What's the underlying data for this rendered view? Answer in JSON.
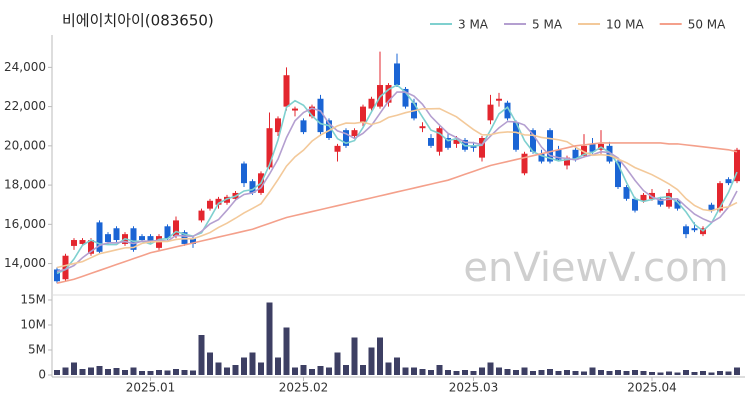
{
  "chart_data": {
    "type": "candlestick",
    "title": "비에이치아이(083650)",
    "watermark": "enViewV.com",
    "up_color": "#e3262e",
    "down_color": "#1a64d4",
    "volume_color": "#3d3f63",
    "categories": [
      null,
      null,
      null,
      null,
      null,
      null,
      null,
      null,
      null,
      null,
      null,
      "2025.01",
      null,
      null,
      null,
      null,
      null,
      null,
      null,
      null,
      null,
      null,
      null,
      null,
      null,
      null,
      null,
      null,
      null,
      "2025.02",
      null,
      null,
      null,
      null,
      null,
      null,
      null,
      null,
      null,
      null,
      null,
      null,
      null,
      null,
      null,
      null,
      null,
      null,
      null,
      "2025.03",
      null,
      null,
      null,
      null,
      null,
      null,
      null,
      null,
      null,
      null,
      null,
      null,
      null,
      null,
      null,
      null,
      null,
      null,
      null,
      null,
      "2025.04",
      null,
      null,
      null,
      null,
      null,
      null,
      null,
      null,
      null,
      null
    ],
    "open": [
      13700,
      13200,
      14900,
      15000,
      14500,
      16100,
      15500,
      15800,
      15000,
      15800,
      15400,
      15400,
      14800,
      15900,
      15400,
      15600,
      15300,
      16200,
      16800,
      17000,
      17100,
      17300,
      19100,
      18200,
      17600,
      18900,
      20700,
      22000,
      21800,
      21300,
      21500,
      22400,
      21300,
      19700,
      20800,
      20500,
      21200,
      21900,
      22000,
      22200,
      24200,
      22900,
      22200,
      20900,
      20400,
      19700,
      20400,
      20100,
      20300,
      20000,
      19400,
      21300,
      22300,
      22200,
      21200,
      18600,
      20800,
      19600,
      20800,
      19800,
      19000,
      19800,
      19500,
      20100,
      19800,
      20000,
      19200,
      17900,
      17300,
      17200,
      17300,
      17300,
      16900,
      17200,
      15900,
      15800,
      15500,
      17000,
      16700,
      18300,
      18200
    ],
    "high": [
      13800,
      14500,
      15300,
      15300,
      15300,
      16200,
      15600,
      15900,
      15600,
      15900,
      15500,
      15500,
      15500,
      16000,
      16400,
      15700,
      15400,
      16800,
      17300,
      17400,
      17500,
      17700,
      19200,
      18300,
      18700,
      21700,
      21500,
      24000,
      22000,
      21400,
      22100,
      22600,
      21400,
      20100,
      20900,
      20900,
      22100,
      22500,
      24800,
      23200,
      24700,
      23000,
      22400,
      21200,
      20600,
      21000,
      20600,
      20500,
      20400,
      20200,
      20500,
      22600,
      22700,
      22300,
      21300,
      19700,
      20900,
      19800,
      20900,
      20000,
      19500,
      20000,
      20600,
      20400,
      20800,
      20200,
      19300,
      18000,
      17400,
      17600,
      17800,
      17400,
      17800,
      17300,
      16000,
      16100,
      15900,
      17100,
      18200,
      18400,
      19900
    ],
    "low": [
      13000,
      13100,
      14700,
      14900,
      14400,
      14500,
      15000,
      15100,
      14900,
      14600,
      15100,
      15000,
      14700,
      15200,
      15300,
      14900,
      14800,
      16100,
      16700,
      16800,
      17000,
      17200,
      17900,
      17500,
      17500,
      18800,
      20500,
      21800,
      21500,
      20600,
      21400,
      20500,
      20300,
      19200,
      19900,
      20400,
      21000,
      21800,
      21900,
      22000,
      23000,
      21900,
      21300,
      20700,
      19900,
      19500,
      19800,
      19900,
      19700,
      19700,
      19200,
      21100,
      22000,
      21300,
      19700,
      18500,
      19600,
      19100,
      19100,
      19200,
      18800,
      19200,
      19400,
      19600,
      19600,
      19100,
      17800,
      17200,
      16600,
      17100,
      17200,
      16900,
      16800,
      16700,
      15300,
      15600,
      15400,
      16600,
      16600,
      18000,
      18100
    ],
    "close": [
      13100,
      14400,
      15200,
      15200,
      15200,
      14600,
      15100,
      15200,
      15500,
      14700,
      15200,
      15100,
      15400,
      15300,
      16200,
      15000,
      15000,
      16700,
      17200,
      17300,
      17400,
      17600,
      18100,
      17600,
      18600,
      20900,
      21400,
      23600,
      21900,
      20700,
      22000,
      20700,
      20400,
      20000,
      20000,
      20800,
      22000,
      22400,
      23100,
      23100,
      23100,
      22000,
      21400,
      21000,
      20000,
      20900,
      19900,
      20300,
      19800,
      19900,
      20400,
      22100,
      22400,
      21400,
      19800,
      19600,
      19700,
      19200,
      19200,
      19300,
      19400,
      19300,
      20000,
      19700,
      20100,
      19200,
      17900,
      17300,
      16700,
      17500,
      17600,
      17000,
      17600,
      16800,
      15500,
      15700,
      15800,
      16700,
      18100,
      18100,
      19800
    ],
    "volume": [
      1000000,
      1500000,
      2500000,
      1200000,
      1500000,
      1800000,
      1200000,
      1400000,
      1000000,
      1500000,
      800000,
      800000,
      1000000,
      900000,
      1200000,
      1000000,
      900000,
      8000000,
      4500000,
      2500000,
      1500000,
      2000000,
      3500000,
      4500000,
      2500000,
      14500000,
      3500000,
      9500000,
      1500000,
      2000000,
      1200000,
      1800000,
      1500000,
      4500000,
      2000000,
      7500000,
      2000000,
      5500000,
      7500000,
      2500000,
      3500000,
      1500000,
      1500000,
      1200000,
      1000000,
      2000000,
      1000000,
      800000,
      1000000,
      800000,
      1500000,
      2500000,
      1500000,
      1200000,
      1000000,
      1500000,
      800000,
      1000000,
      1200000,
      800000,
      1000000,
      800000,
      700000,
      1500000,
      1000000,
      800000,
      1000000,
      800000,
      1000000,
      800000,
      600000,
      500000,
      700000,
      500000,
      1000000,
      600000,
      800000,
      500000,
      800000,
      700000,
      1500000
    ],
    "series": [
      {
        "name": "3 MA",
        "color": "#7fd0cf",
        "values": [
          13500,
          13700,
          14233,
          14933,
          15200,
          15000,
          14967,
          14967,
          15267,
          15133,
          15133,
          15000,
          15233,
          15267,
          15633,
          15500,
          15400,
          15567,
          16300,
          17067,
          17300,
          17433,
          17700,
          17767,
          18100,
          19033,
          20300,
          21967,
          22300,
          22067,
          21533,
          21133,
          21033,
          20367,
          20133,
          20267,
          20933,
          21733,
          22500,
          22867,
          23100,
          22733,
          22167,
          21467,
          20800,
          20633,
          20267,
          20367,
          20000,
          20000,
          20033,
          20800,
          21633,
          21967,
          21200,
          20267,
          19700,
          19500,
          19367,
          19233,
          19300,
          19333,
          19567,
          19667,
          19933,
          19667,
          19067,
          18133,
          17300,
          17167,
          17267,
          17367,
          17400,
          17133,
          16633,
          16000,
          15667,
          16067,
          16867,
          17633,
          18667
        ]
      },
      {
        "name": "5 MA",
        "color": "#b49fd0",
        "values": [
          13600,
          13700,
          13900,
          14300,
          14620,
          14920,
          15060,
          15060,
          15120,
          15020,
          15140,
          15140,
          15180,
          15140,
          15440,
          15400,
          15380,
          15640,
          16020,
          16240,
          16720,
          17240,
          17520,
          17600,
          17860,
          18560,
          19320,
          20420,
          21280,
          21700,
          21920,
          21780,
          21140,
          20760,
          20620,
          20380,
          20640,
          21040,
          21660,
          22280,
          22740,
          22740,
          22540,
          22120,
          21500,
          21060,
          20640,
          20420,
          20180,
          20160,
          20060,
          20500,
          20920,
          21240,
          21220,
          21060,
          20580,
          19940,
          19500,
          19400,
          19360,
          19280,
          19440,
          19540,
          19700,
          19660,
          19380,
          18840,
          18240,
          17720,
          17400,
          17220,
          17280,
          17300,
          16900,
          16520,
          16280,
          16100,
          16360,
          16880,
          17700
        ]
      },
      {
        "name": "10 MA",
        "color": "#f3c99a",
        "values": [
          13800,
          13900,
          14000,
          14100,
          14300,
          14500,
          14600,
          14700,
          14800,
          14820,
          15030,
          15100,
          15120,
          15130,
          15230,
          15270,
          15260,
          15410,
          15580,
          15840,
          16060,
          16310,
          16580,
          16810,
          17050,
          17640,
          18280,
          18970,
          19440,
          19780,
          20240,
          20550,
          20780,
          21020,
          21160,
          21150,
          21210,
          21090,
          21210,
          21450,
          21560,
          21690,
          21790,
          21890,
          21890,
          21900,
          21690,
          21480,
          21150,
          20830,
          20560,
          20570,
          20670,
          20710,
          20690,
          20560,
          20540,
          20430,
          20370,
          20310,
          20210,
          19930,
          19690,
          19520,
          19550,
          19510,
          19330,
          19140,
          18890,
          18710,
          18530,
          18300,
          18060,
          17770,
          17310,
          16960,
          16750,
          16690,
          16830,
          16890,
          17110
        ]
      },
      {
        "name": "50 MA",
        "color": "#f4a08b",
        "values": [
          13000,
          13100,
          13200,
          13350,
          13500,
          13650,
          13800,
          13950,
          14100,
          14250,
          14400,
          14550,
          14650,
          14750,
          14850,
          14950,
          15050,
          15150,
          15250,
          15350,
          15450,
          15550,
          15650,
          15750,
          15900,
          16050,
          16200,
          16350,
          16450,
          16550,
          16650,
          16750,
          16850,
          16950,
          17050,
          17150,
          17250,
          17350,
          17450,
          17550,
          17650,
          17750,
          17850,
          17950,
          18050,
          18150,
          18250,
          18400,
          18550,
          18700,
          18850,
          19000,
          19100,
          19200,
          19300,
          19400,
          19500,
          19600,
          19700,
          19800,
          19900,
          20000,
          20050,
          20100,
          20150,
          20150,
          20150,
          20150,
          20150,
          20150,
          20150,
          20150,
          20100,
          20100,
          20050,
          20000,
          19950,
          19900,
          19850,
          19800,
          19700
        ]
      }
    ],
    "ylim": [
      12500,
      25650
    ],
    "yticks": [
      {
        "value": 14000,
        "label": "14,000"
      },
      {
        "value": 16000,
        "label": "16,000"
      },
      {
        "value": 18000,
        "label": "18,000"
      },
      {
        "value": 20000,
        "label": "20,000"
      },
      {
        "value": 22000,
        "label": "22,000"
      },
      {
        "value": 24000,
        "label": "24,000"
      }
    ],
    "volume_ylim": [
      0,
      15600000
    ],
    "volume_yticks": [
      0,
      {
        "value": 5000000,
        "label": "5M"
      },
      {
        "value": 10000000,
        "label": "10M"
      },
      {
        "value": 15000000,
        "label": "15M"
      }
    ],
    "legend": "top-right"
  }
}
